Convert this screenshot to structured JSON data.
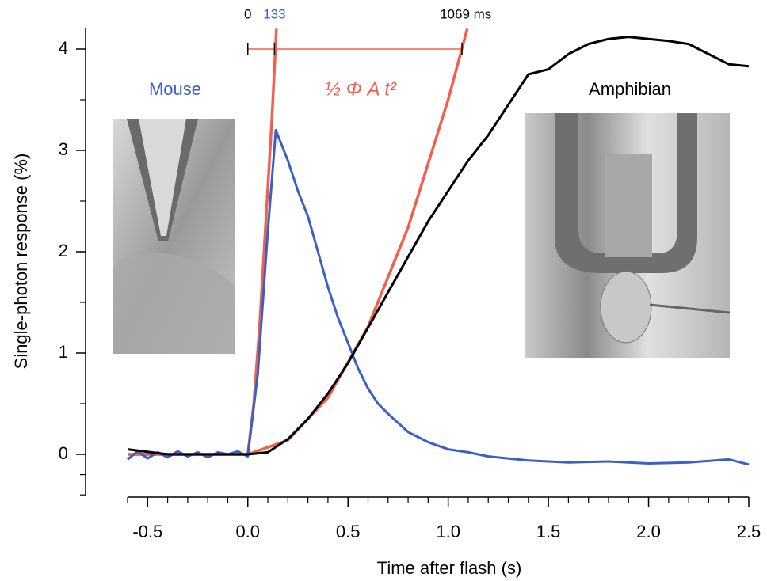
{
  "chart_data": {
    "type": "line",
    "x_label": "Time after flash  (s)",
    "y_label": "Single-photon response  (%)",
    "xlim": [
      -0.6,
      2.5
    ],
    "ylim": [
      -0.4,
      4.2
    ],
    "xticks": [
      -0.5,
      {
        "value": 0,
        "label": "0.0"
      },
      0.5,
      {
        "value": 1,
        "label": "1.0"
      },
      1.5,
      {
        "value": 2,
        "label": "2.0"
      },
      2.5
    ],
    "xminorticks": [
      -0.6,
      -0.4,
      -0.3,
      -0.2,
      -0.1,
      0.1,
      0.2,
      0.3,
      0.4,
      0.6,
      0.7,
      0.8,
      0.9,
      1.1,
      1.2,
      1.3,
      1.4,
      1.6,
      1.7,
      1.8,
      1.9,
      2.1,
      2.2,
      2.3,
      2.4
    ],
    "yticks": [
      0,
      1,
      2,
      3,
      4
    ],
    "yminorticks": [
      -0.4,
      -0.2,
      0.5,
      1.5,
      2.5,
      3.5
    ],
    "series": [
      {
        "name": "Mouse",
        "color": "#3b5fc8",
        "x": [
          -0.6,
          -0.55,
          -0.5,
          -0.45,
          -0.4,
          -0.35,
          -0.3,
          -0.25,
          -0.2,
          -0.15,
          -0.1,
          -0.05,
          0,
          0.05,
          0.1,
          0.14,
          0.2,
          0.25,
          0.3,
          0.35,
          0.4,
          0.45,
          0.5,
          0.55,
          0.6,
          0.65,
          0.7,
          0.8,
          0.9,
          1.0,
          1.1,
          1.2,
          1.4,
          1.6,
          1.8,
          2.0,
          2.2,
          2.4,
          2.5
        ],
        "values": [
          -0.05,
          0.03,
          -0.04,
          0.02,
          -0.03,
          0.03,
          -0.02,
          0.02,
          -0.03,
          0.02,
          0.0,
          0.03,
          -0.02,
          0.8,
          2.2,
          3.2,
          2.9,
          2.6,
          2.35,
          2.0,
          1.65,
          1.35,
          1.1,
          0.85,
          0.65,
          0.5,
          0.4,
          0.22,
          0.12,
          0.05,
          0.02,
          -0.02,
          -0.06,
          -0.08,
          -0.07,
          -0.09,
          -0.08,
          -0.05,
          -0.1
        ]
      },
      {
        "name": "Amphibian",
        "color": "#000000",
        "x": [
          -0.6,
          -0.4,
          -0.2,
          0,
          0.1,
          0.2,
          0.3,
          0.4,
          0.5,
          0.6,
          0.7,
          0.8,
          0.9,
          1.0,
          1.1,
          1.2,
          1.3,
          1.4,
          1.5,
          1.6,
          1.7,
          1.8,
          1.9,
          2.0,
          2.1,
          2.2,
          2.3,
          2.4,
          2.5
        ],
        "values": [
          0.05,
          0.0,
          0.0,
          0.0,
          0.02,
          0.15,
          0.35,
          0.6,
          0.9,
          1.25,
          1.6,
          1.95,
          2.3,
          2.6,
          2.9,
          3.15,
          3.45,
          3.75,
          3.8,
          3.95,
          4.05,
          4.1,
          4.12,
          4.1,
          4.08,
          4.05,
          3.95,
          3.85,
          3.83
        ]
      }
    ],
    "fit": {
      "label": "½ Φ A t²",
      "color": "#f0604c",
      "curves": [
        {
          "x": [
            -0.6,
            0,
            0.03,
            0.06,
            0.09,
            0.12,
            0.143
          ],
          "values": [
            0,
            0,
            0.5,
            1.3,
            2.3,
            3.3,
            4.2
          ]
        },
        {
          "x": [
            -0.6,
            0,
            0.2,
            0.4,
            0.6,
            0.8,
            1.0,
            1.095
          ],
          "values": [
            0,
            0,
            0.14,
            0.56,
            1.26,
            2.24,
            3.5,
            4.2
          ]
        }
      ]
    },
    "time_markers": {
      "level": 4,
      "color": "#f0604c",
      "marks": [
        {
          "value": 0,
          "label": "0",
          "color": "#000000"
        },
        {
          "value": 0.133,
          "label": "133",
          "color": "#3b5fc8"
        },
        {
          "value": 1.069,
          "label": "1069 ms",
          "color": "#000000"
        }
      ]
    }
  }
}
